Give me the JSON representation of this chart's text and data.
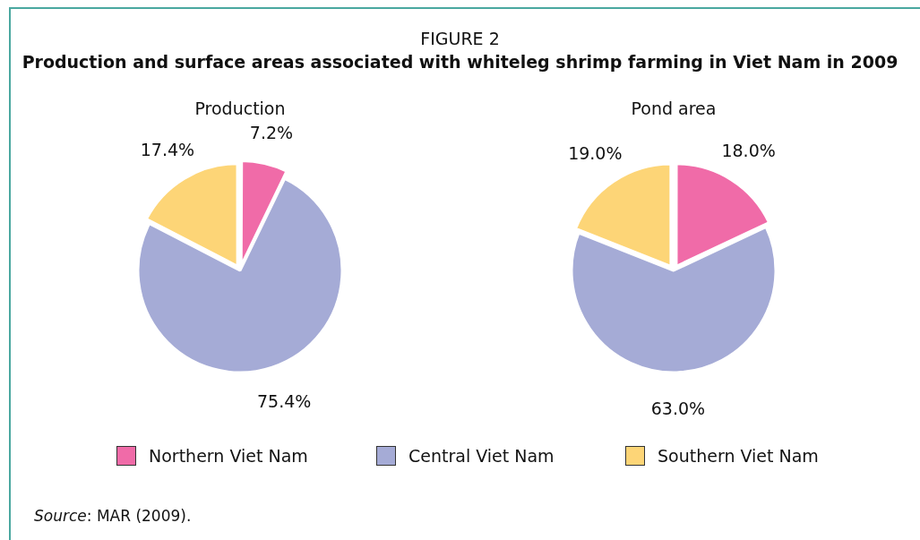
{
  "chart_data": [
    {
      "type": "other",
      "title": "FIGURE 2",
      "subtitle": "Production and surface areas associated with whiteleg shrimp farming in Viet Nam in 2009",
      "annotations": [
        "Source: MAR (2009)."
      ]
    },
    {
      "type": "pie",
      "title": "Production",
      "categories": [
        "Northern Viet Nam",
        "Central Viet Nam",
        "Southern Viet Nam"
      ],
      "values": [
        7.2,
        75.4,
        17.4
      ],
      "colors": [
        "#f06ba8",
        "#a5abd6",
        "#fdd577"
      ],
      "value_labels": [
        "7.2%",
        "75.4%",
        "17.4%"
      ],
      "legend": "bottom"
    },
    {
      "type": "pie",
      "title": "Pond area",
      "categories": [
        null,
        null,
        null
      ],
      "values": [
        18.0,
        63.0,
        19.0
      ],
      "colors": [
        "#f06ba8",
        "#a5abd6",
        "#fdd577"
      ],
      "value_labels": [
        "18.0%",
        "63.0%",
        "19.0%"
      ]
    }
  ]
}
